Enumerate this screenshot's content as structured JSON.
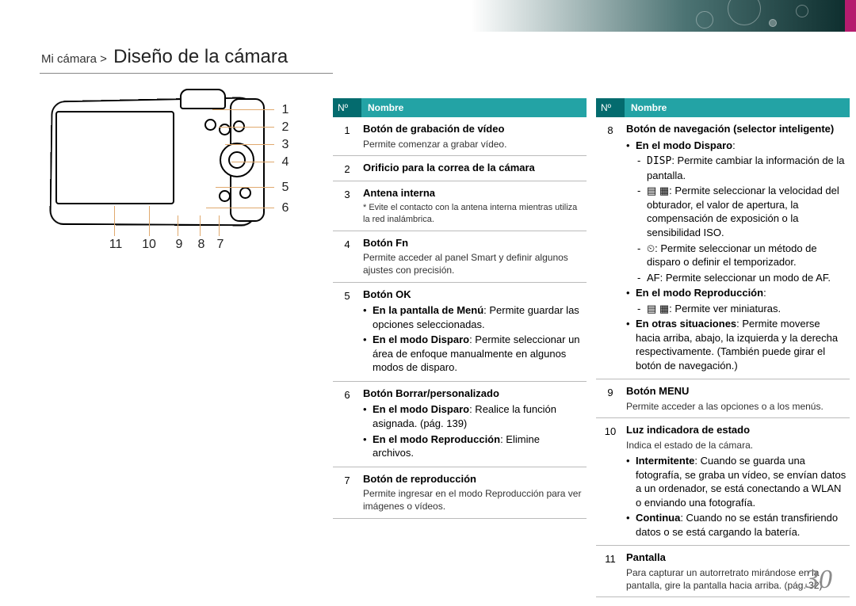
{
  "breadcrumb": {
    "section": "Mi cámara >",
    "title": "Diseño de la cámara"
  },
  "table_header": {
    "no": "Nº",
    "nombre": "Nombre"
  },
  "labels": [
    "1",
    "2",
    "3",
    "4",
    "5",
    "6",
    "7",
    "8",
    "9",
    "10",
    "11"
  ],
  "page_number": "30",
  "left": {
    "r1": {
      "n": "1",
      "title": "Botón de grabación de vídeo",
      "sub": "Permite comenzar a grabar vídeo."
    },
    "r2": {
      "n": "2",
      "title": "Orificio para la correa de la cámara"
    },
    "r3": {
      "n": "3",
      "title": "Antena interna",
      "note": "* Evite el contacto con la antena interna mientras utiliza la red inalámbrica."
    },
    "r4": {
      "n": "4",
      "title": "Botón Fn",
      "sub": "Permite acceder al panel Smart y definir algunos ajustes con precisión."
    },
    "r5": {
      "n": "5",
      "title": "Botón OK",
      "b1": "En la pantalla de Menú",
      "b1t": ": Permite guardar las opciones seleccionadas.",
      "b2": "En el modo Disparo",
      "b2t": ": Permite seleccionar un área de enfoque manualmente en algunos modos de disparo."
    },
    "r6": {
      "n": "6",
      "title": "Botón Borrar/personalizado",
      "b1": "En el modo Disparo",
      "b1t": ": Realice la función asignada. (pág. 139)",
      "b2": "En el modo Reproducción",
      "b2t": ": Elimine archivos."
    },
    "r7": {
      "n": "7",
      "title": "Botón de reproducción",
      "sub": "Permite ingresar en el modo Reproducción para ver imágenes o vídeos."
    }
  },
  "right": {
    "r8": {
      "n": "8",
      "title": "Botón de navegación (selector inteligente)",
      "m1": "En el modo Disparo",
      "d1a": "DISP",
      "d1b": ": Permite cambiar la información de la pantalla.",
      "d2": "▤ ▦: Permite seleccionar la velocidad del obturador, el valor de apertura, la compensación de exposición o la sensibilidad ISO.",
      "d3": "⏲: Permite seleccionar un método de disparo o definir el temporizador.",
      "d4": "AF: Permite seleccionar un modo de AF.",
      "m2": "En el modo Reproducción",
      "d5": "▤ ▦: Permite ver miniaturas.",
      "m3": "En otras situaciones",
      "m3t": ": Permite moverse hacia arriba, abajo, la izquierda y la derecha respectivamente. (También puede girar el botón de navegación.)"
    },
    "r9": {
      "n": "9",
      "title": "Botón MENU",
      "sub": "Permite acceder a las opciones o a los menús."
    },
    "r10": {
      "n": "10",
      "title": "Luz indicadora de estado",
      "sub": "Indica el estado de la cámara.",
      "b1": "Intermitente",
      "b1t": ": Cuando se guarda una fotografía, se graba un vídeo, se envían datos a un ordenador, se está conectando a WLAN o enviando una fotografía.",
      "b2": "Continua",
      "b2t": ": Cuando no se están transfiriendo datos o se está cargando la batería."
    },
    "r11": {
      "n": "11",
      "title": "Pantalla",
      "sub": "Para capturar un autorretrato mirándose en la pantalla, gire la pantalla hacia arriba. (pág. 32)"
    }
  }
}
